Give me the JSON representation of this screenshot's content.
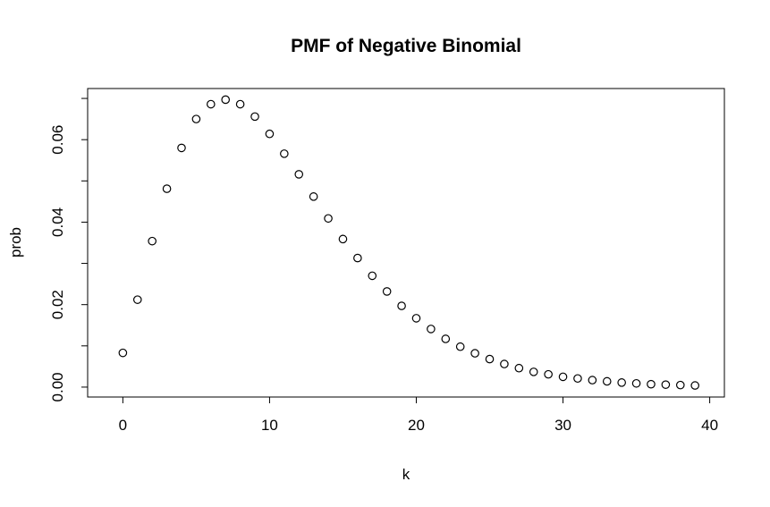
{
  "chart_data": {
    "type": "scatter",
    "title": "PMF of Negative Binomial",
    "xlabel": "k",
    "ylabel": "prob",
    "xlim": [
      -2.4,
      41
    ],
    "ylim": [
      -0.0024,
      0.0724
    ],
    "x_ticks": [
      0,
      10,
      20,
      30,
      40
    ],
    "y_ticks": [
      0.0,
      0.02,
      0.04,
      0.06
    ],
    "x_tick_labels": [
      "0",
      "10",
      "20",
      "30",
      "40"
    ],
    "y_tick_labels": [
      "0.00",
      "0.02",
      "0.04",
      "0.06"
    ],
    "y_minor_ticks": [
      0.01,
      0.03,
      0.05,
      0.07
    ],
    "grid": false,
    "legend": "none",
    "marker": "open-circle",
    "series": [
      {
        "x": [
          0,
          1,
          2,
          3,
          4,
          5,
          6,
          7,
          8,
          9,
          10,
          11,
          12,
          13,
          14,
          15,
          16,
          17,
          18,
          19,
          20,
          21,
          22,
          23,
          24,
          25,
          26,
          27,
          28,
          29,
          30,
          31,
          32,
          33,
          34,
          35,
          36,
          37,
          38,
          39
        ],
        "values": [
          0.0083,
          0.0212,
          0.0354,
          0.0481,
          0.058,
          0.065,
          0.0686,
          0.0697,
          0.0686,
          0.0656,
          0.0614,
          0.0566,
          0.0516,
          0.0462,
          0.0409,
          0.0359,
          0.0313,
          0.027,
          0.0232,
          0.0197,
          0.0167,
          0.0141,
          0.0117,
          0.0098,
          0.0082,
          0.0068,
          0.0056,
          0.0046,
          0.0037,
          0.0031,
          0.0025,
          0.0021,
          0.0017,
          0.0014,
          0.0011,
          0.0009,
          0.0007,
          0.0006,
          0.0005,
          0.0004
        ]
      }
    ]
  }
}
